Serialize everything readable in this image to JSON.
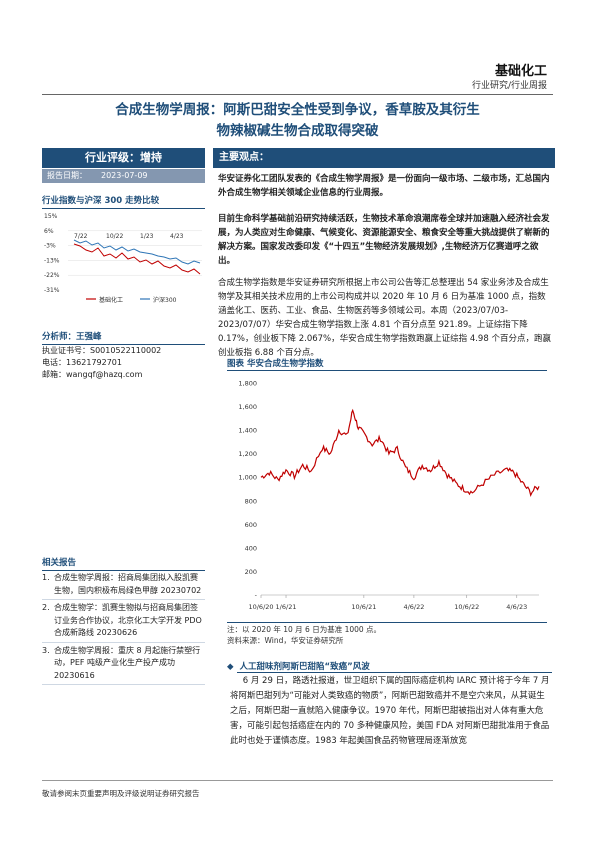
{
  "header": {
    "sector": "基础化工",
    "report_type": "行业研究/行业周报"
  },
  "title": {
    "line1": "合成生物学周报：阿斯巴甜安全性受到争议，香草胺及其衍生",
    "line2": "物辣椒碱生物合成取得突破"
  },
  "rating": {
    "label": "行业评级：增持",
    "date_label": "报告日期：",
    "date_value": "2023-07-09"
  },
  "trend": {
    "heading": "行业指数与沪深 300 走势比较",
    "y_ticks": [
      "15%",
      "6%",
      "-3%",
      "-13%",
      "-22%",
      "-31%"
    ],
    "x_ticks": [
      "7/22",
      "10/22",
      "1/23",
      "4/23"
    ],
    "legend": [
      "基础化工",
      "沪深300"
    ],
    "colors": {
      "sector": "#c00000",
      "index": "#2e75b6"
    }
  },
  "analyst": {
    "heading": "分析师：王强峰",
    "cert_label": "执业证书号：",
    "cert_value": "S0010522110002",
    "phone_label": "电话：",
    "phone_value": "13621792701",
    "email_label": "邮箱：",
    "email_value": "wangqf@hazq.com"
  },
  "related": {
    "heading": "相关报告",
    "items": [
      {
        "num": "1.",
        "text": "合成生物学周报：招商局集团拟入股凯赛生物，国内积极布局绿色甲醇 20230702"
      },
      {
        "num": "2.",
        "text": "合成生物学：凯赛生物拟与招商局集团签订业务合作协议，北京化工大学开发 PDO 合成新路线 20230626"
      },
      {
        "num": "3.",
        "text": "合成生物学周报：重庆 8 月起施行禁塑行动，PEF 吨级产业化生产投产成功 20230616"
      }
    ]
  },
  "key_points": {
    "label": "主要观点：",
    "para1": "华安证券化工团队发表的《合成生物学周报》是一份面向一级市场、二级市场，汇总国内外合成生物学相关领域企业信息的行业周报。",
    "para2": "目前生命科学基础前沿研究持续活跃，生物技术革命浪潮席卷全球并加速融入经济社会发展，为人类应对生命健康、气候变化、资源能源安全、粮食安全等重大挑战提供了崭新的解决方案。国家发改委印发《“十四五”生物经济发展规划》,生物经济万亿赛道呼之欲出。",
    "para3": "合成生物学指数是华安证券研究所根据上市公司公告等汇总整理出 54 家业务涉及合成生物学及其相关技术应用的上市公司构成并以 2020 年 10 月 6 日为基准 1000 点，指数涵盖化工、医药、工业、食品、生物医药等多领域公司。本周（2023/07/03-2023/07/07）华安合成生物学指数上涨 4.81 个百分点至 921.89。上证综指下降 0.17%，创业板下降 2.067%，华安合成生物学指数跑赢上证综指 4.98 个百分点，跑赢创业板指 6.88 个百分点。"
  },
  "figure": {
    "caption": "图表 华安合成生物学指数",
    "y_ticks": [
      "1,800",
      "1,600",
      "1,400",
      "1,200",
      "1,000",
      "800",
      "600",
      "400",
      "200",
      "-"
    ],
    "x_ticks": [
      "10/6/20",
      "1/6/21",
      "10/6/21",
      "4/6/22",
      "10/6/22",
      "4/6/23"
    ],
    "note": "注：以 2020 年 10 月 6 日为基准 1000 点。",
    "source": "资料来源：Wind，华安证券研究所",
    "line_color": "#c00000"
  },
  "chart_data": {
    "type": "line",
    "title": "华安合成生物学指数",
    "ylim": [
      0,
      1800
    ],
    "x": [
      "10/6/20",
      "1/6/21",
      "4/6/21",
      "7/6/21",
      "8/20/21",
      "10/6/21",
      "1/6/22",
      "4/6/22",
      "7/6/22",
      "10/6/22",
      "1/6/23",
      "4/6/23",
      "5/15/23",
      "7/7/23"
    ],
    "series": [
      {
        "values": [
          1000,
          1050,
          1150,
          1350,
          1570,
          1360,
          1250,
          1000,
          1080,
          870,
          1020,
          1050,
          870,
          922
        ]
      }
    ]
  },
  "section": {
    "heading": "人工甜味剂阿斯巴甜陷“致癌”风波",
    "body": "6 月 29 日，路透社报道，世卫组织下属的国际癌症机构 IARC 预计将于今年 7 月将阿斯巴甜列为“可能对人类致癌的物质”，阿斯巴甜致癌并不是空穴来风，从其诞生之后，阿斯巴甜一直就陷入健康争议。1970 年代，阿斯巴甜被指出对人体有重大危害，可能引起包括癌症在内的 70 多种健康风险，美国 FDA 对阿斯巴甜批准用于食品此时也处于谨慎态度。1983 年起美国食品药物管理局逐渐放宽"
  },
  "footer": {
    "disclaimer": "敬请参阅末页重要声明及评级说明证券研究报告"
  }
}
